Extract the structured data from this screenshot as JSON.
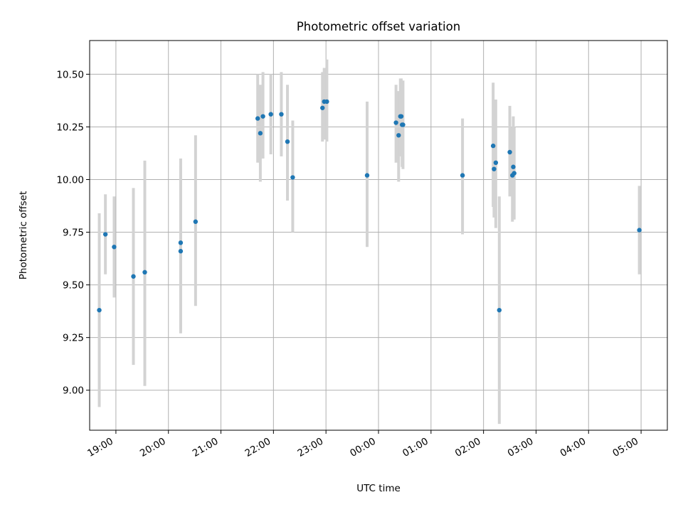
{
  "chart_data": {
    "type": "scatter",
    "title": "Photometric offset variation",
    "xlabel": "UTC time",
    "ylabel": "Photometric offset",
    "x_unit": "UTC clock time (HH:MM), night spanning midnight",
    "xlim": [
      "18:30",
      "05:30"
    ],
    "ylim": [
      8.81,
      10.66
    ],
    "x_ticks": [
      "19:00",
      "20:00",
      "21:00",
      "22:00",
      "23:00",
      "00:00",
      "01:00",
      "02:00",
      "03:00",
      "04:00",
      "05:00"
    ],
    "y_ticks": [
      9.0,
      9.25,
      9.5,
      9.75,
      10.0,
      10.25,
      10.5
    ],
    "y_tick_labels": [
      "9.00",
      "9.25",
      "9.50",
      "9.75",
      "10.00",
      "10.25",
      "10.50"
    ],
    "grid": true,
    "marker_color": "#1f77b4",
    "errorbar_color": "#d3d3d3",
    "points": [
      {
        "time": "18:41",
        "y": 9.38,
        "ylow": 8.92,
        "yhigh": 9.84
      },
      {
        "time": "18:48",
        "y": 9.74,
        "ylow": 9.55,
        "yhigh": 9.93
      },
      {
        "time": "18:58",
        "y": 9.68,
        "ylow": 9.44,
        "yhigh": 9.92
      },
      {
        "time": "19:20",
        "y": 9.54,
        "ylow": 9.12,
        "yhigh": 9.96
      },
      {
        "time": "19:33",
        "y": 9.56,
        "ylow": 9.02,
        "yhigh": 10.09
      },
      {
        "time": "20:14",
        "y": 9.7,
        "ylow": 9.29,
        "yhigh": 10.1
      },
      {
        "time": "20:14",
        "y": 9.66,
        "ylow": 9.27,
        "yhigh": 10.06
      },
      {
        "time": "20:31",
        "y": 9.8,
        "ylow": 9.4,
        "yhigh": 10.21
      },
      {
        "time": "21:42",
        "y": 10.29,
        "ylow": 10.08,
        "yhigh": 10.5
      },
      {
        "time": "21:45",
        "y": 10.22,
        "ylow": 9.99,
        "yhigh": 10.45
      },
      {
        "time": "21:48",
        "y": 10.3,
        "ylow": 10.1,
        "yhigh": 10.51
      },
      {
        "time": "21:57",
        "y": 10.31,
        "ylow": 10.12,
        "yhigh": 10.5
      },
      {
        "time": "22:09",
        "y": 10.31,
        "ylow": 10.11,
        "yhigh": 10.51
      },
      {
        "time": "22:16",
        "y": 10.18,
        "ylow": 9.9,
        "yhigh": 10.45
      },
      {
        "time": "22:22",
        "y": 10.01,
        "ylow": 9.75,
        "yhigh": 10.28
      },
      {
        "time": "22:56",
        "y": 10.34,
        "ylow": 10.18,
        "yhigh": 10.51
      },
      {
        "time": "22:58",
        "y": 10.37,
        "ylow": 10.19,
        "yhigh": 10.53
      },
      {
        "time": "23:01",
        "y": 10.37,
        "ylow": 10.18,
        "yhigh": 10.57
      },
      {
        "time": "23:47",
        "y": 10.02,
        "ylow": 9.68,
        "yhigh": 10.37
      },
      {
        "time": "00:20",
        "y": 10.27,
        "ylow": 10.08,
        "yhigh": 10.45
      },
      {
        "time": "00:23",
        "y": 10.21,
        "ylow": 9.99,
        "yhigh": 10.42
      },
      {
        "time": "00:25",
        "y": 10.3,
        "ylow": 10.11,
        "yhigh": 10.48
      },
      {
        "time": "00:26",
        "y": 10.3,
        "ylow": 10.12,
        "yhigh": 10.48
      },
      {
        "time": "00:27",
        "y": 10.26,
        "ylow": 10.06,
        "yhigh": 10.46
      },
      {
        "time": "00:28",
        "y": 10.26,
        "ylow": 10.05,
        "yhigh": 10.47
      },
      {
        "time": "01:36",
        "y": 10.02,
        "ylow": 9.74,
        "yhigh": 10.29
      },
      {
        "time": "02:11",
        "y": 10.16,
        "ylow": 9.87,
        "yhigh": 10.46
      },
      {
        "time": "02:12",
        "y": 10.05,
        "ylow": 9.82,
        "yhigh": 10.28
      },
      {
        "time": "02:14",
        "y": 10.08,
        "ylow": 9.77,
        "yhigh": 10.38
      },
      {
        "time": "02:18",
        "y": 9.38,
        "ylow": 8.84,
        "yhigh": 9.92
      },
      {
        "time": "02:30",
        "y": 10.13,
        "ylow": 9.92,
        "yhigh": 10.35
      },
      {
        "time": "02:33",
        "y": 10.02,
        "ylow": 9.8,
        "yhigh": 10.25
      },
      {
        "time": "02:34",
        "y": 10.06,
        "ylow": 9.82,
        "yhigh": 10.3
      },
      {
        "time": "02:35",
        "y": 10.03,
        "ylow": 9.81,
        "yhigh": 10.25
      },
      {
        "time": "04:58",
        "y": 9.76,
        "ylow": 9.55,
        "yhigh": 9.97
      }
    ]
  }
}
